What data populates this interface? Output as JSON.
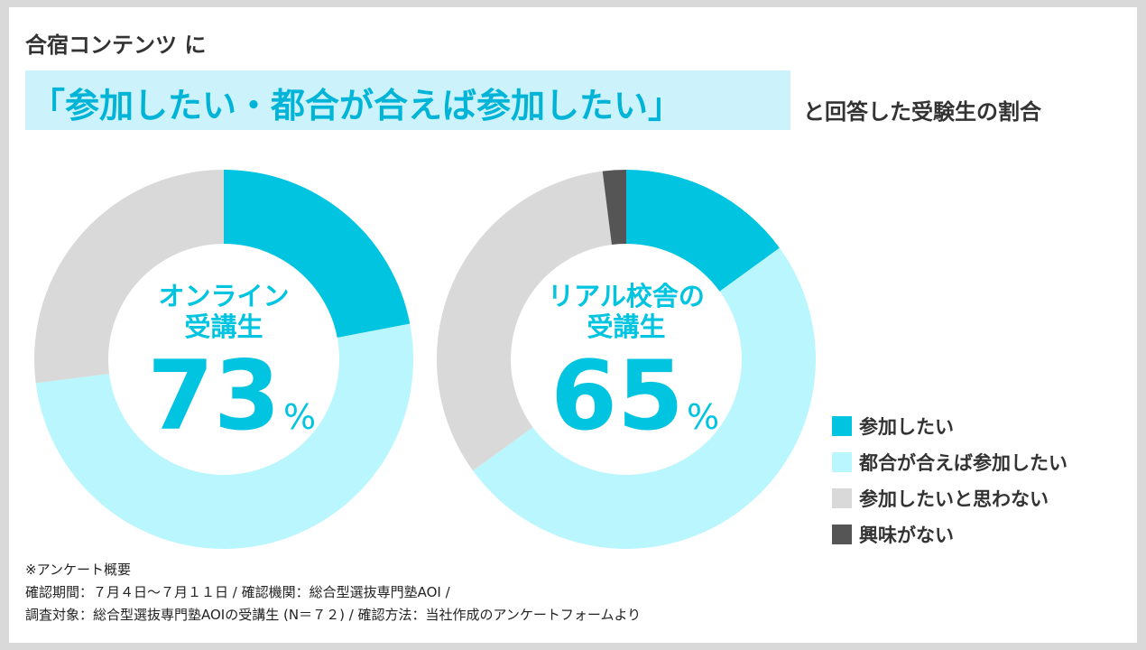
{
  "title": {
    "line1": "合宿コンテンツ に",
    "highlight": "「参加したい・都合が合えば参加したい」",
    "suffix": "と回答した受験生の割合"
  },
  "chart_data": [
    {
      "type": "pie",
      "name": "online",
      "center_label_line1": "オンライン",
      "center_label_line2": "受講生",
      "total_value": "73",
      "unit": "%",
      "slices": [
        {
          "category": "参加したい",
          "value": 22
        },
        {
          "category": "都合が合えば参加したい",
          "value": 51
        },
        {
          "category": "参加したいと思わない",
          "value": 27
        },
        {
          "category": "興味がない",
          "value": 0
        }
      ]
    },
    {
      "type": "pie",
      "name": "campus",
      "center_label_line1": "リアル校舎の",
      "center_label_line2": "受講生",
      "total_value": "65",
      "unit": "%",
      "slices": [
        {
          "category": "参加したい",
          "value": 15
        },
        {
          "category": "都合が合えば参加したい",
          "value": 50
        },
        {
          "category": "参加したいと思わない",
          "value": 33
        },
        {
          "category": "興味がない",
          "value": 2
        }
      ]
    }
  ],
  "legend": [
    {
      "label": "参加したい",
      "color": "#00c4e0"
    },
    {
      "label": "都合が合えば参加したい",
      "color": "#b9f6fd"
    },
    {
      "label": "参加したいと思わない",
      "color": "#d9d9d9"
    },
    {
      "label": "興味がない",
      "color": "#555555"
    }
  ],
  "footnote": {
    "line1": "※アンケート概要",
    "line2": "確認期間：７月４日〜７月１１日 / 確認機関：総合型選抜専門塾AOI /",
    "line3": "調査対象：総合型選抜専門塾AOIの受講生 (N＝７２) / 確認方法：当社作成のアンケートフォームより"
  }
}
